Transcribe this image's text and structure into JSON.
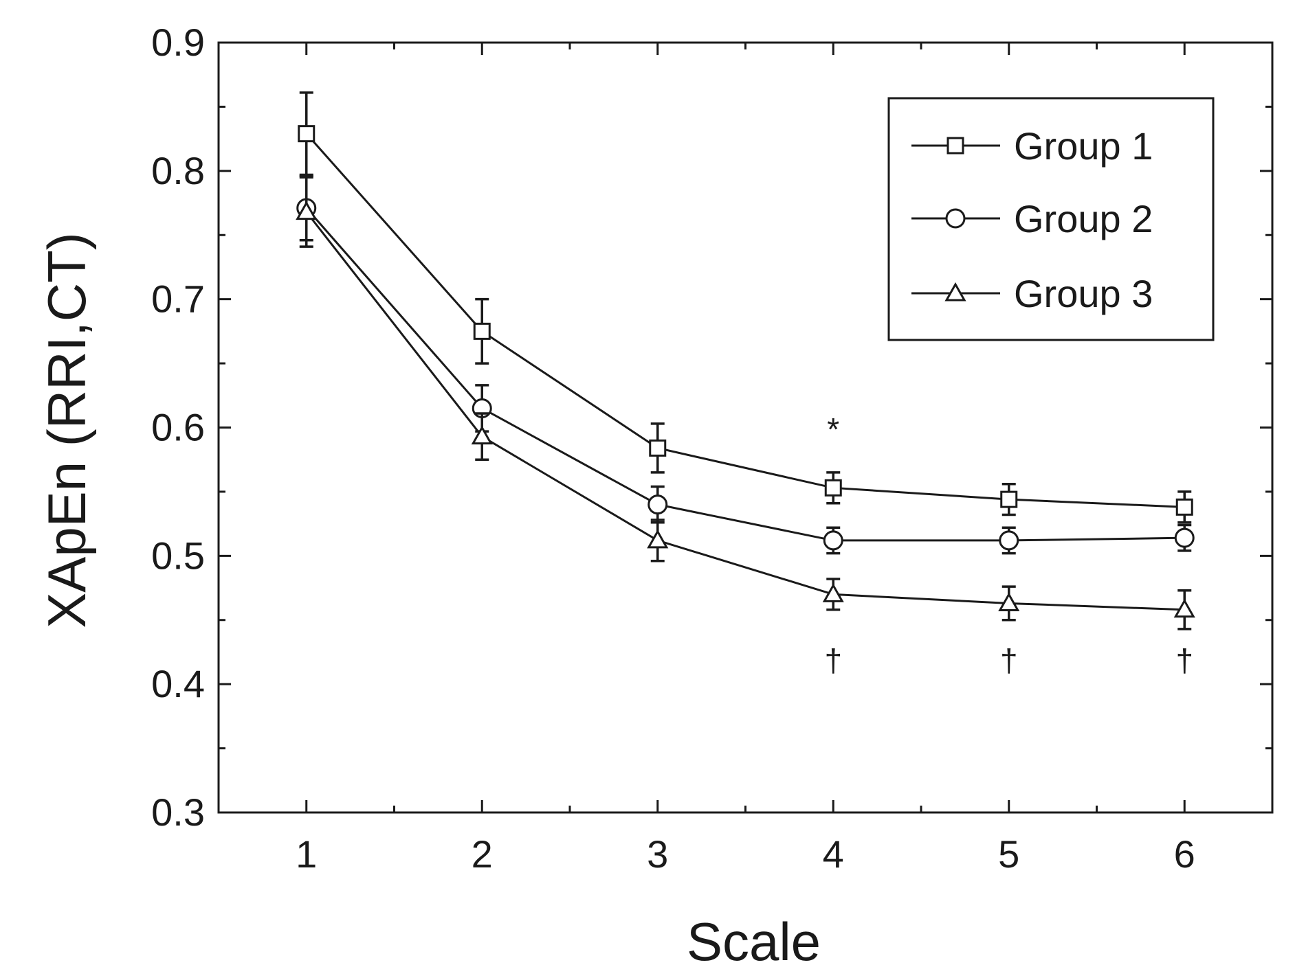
{
  "chart_data": {
    "type": "line",
    "title": "",
    "xlabel": "Scale",
    "ylabel": "XApEn (RRI,CT)",
    "x": [
      1,
      2,
      3,
      4,
      5,
      6
    ],
    "xlim": [
      0.5,
      6.5
    ],
    "ylim": [
      0.3,
      0.9
    ],
    "xticks": [
      "1",
      "2",
      "3",
      "4",
      "5",
      "6"
    ],
    "yticks": [
      "0.3",
      "0.4",
      "0.5",
      "0.6",
      "0.7",
      "0.8",
      "0.9"
    ],
    "grid": false,
    "legend_position": "top-right",
    "series": [
      {
        "name": "Group 1",
        "marker": "square",
        "values": [
          0.829,
          0.675,
          0.584,
          0.553,
          0.544,
          0.538
        ],
        "errors": [
          0.032,
          0.025,
          0.019,
          0.012,
          0.012,
          0.012
        ]
      },
      {
        "name": "Group 2",
        "marker": "circle",
        "values": [
          0.771,
          0.615,
          0.54,
          0.512,
          0.512,
          0.514
        ],
        "errors": [
          0.025,
          0.018,
          0.014,
          0.01,
          0.01,
          0.01
        ]
      },
      {
        "name": "Group 3",
        "marker": "triangle",
        "values": [
          0.768,
          0.593,
          0.512,
          0.47,
          0.463,
          0.458
        ],
        "errors": [
          0.027,
          0.018,
          0.016,
          0.012,
          0.013,
          0.015
        ]
      }
    ],
    "annotations": [
      {
        "text": "*",
        "x": 4,
        "y": 0.59
      },
      {
        "text": "†",
        "x": 4,
        "y": 0.41
      },
      {
        "text": "†",
        "x": 5,
        "y": 0.41
      },
      {
        "text": "†",
        "x": 6,
        "y": 0.41
      }
    ]
  },
  "colors": {
    "line": "#1a1a1a",
    "marker_fill": "#ffffff",
    "background": "#ffffff"
  }
}
